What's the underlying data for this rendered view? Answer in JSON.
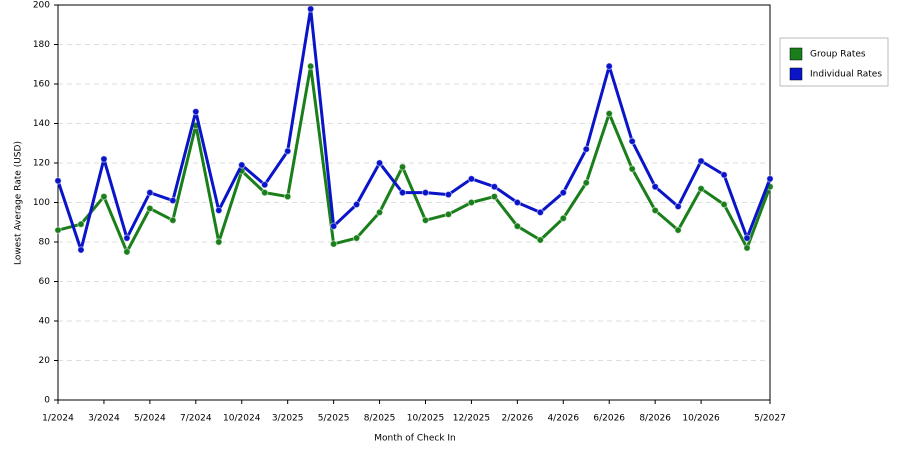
{
  "chart_data": {
    "type": "line",
    "x_label": "Month of Check In",
    "y_label": "Lowest Average Rate (USD)",
    "categories": [
      "1/2024",
      null,
      "3/2024",
      null,
      "5/2024",
      null,
      "7/2024",
      null,
      "10/2024",
      null,
      "3/2025",
      null,
      "5/2025",
      null,
      "8/2025",
      null,
      "10/2025",
      null,
      "12/2025",
      null,
      "2/2026",
      null,
      "4/2026",
      null,
      "6/2026",
      null,
      "8/2026",
      null,
      "10/2026",
      null,
      null,
      "5/2027"
    ],
    "series": [
      {
        "name": "Group Rates",
        "color": "#1a7f1a",
        "values": [
          86,
          89,
          103,
          75,
          97,
          91,
          139,
          80,
          116,
          105,
          103,
          169,
          79,
          82,
          95,
          118,
          91,
          94,
          100,
          103,
          88,
          81,
          92,
          110,
          145,
          117,
          96,
          86,
          107,
          99,
          77,
          108
        ]
      },
      {
        "name": "Individual Rates",
        "color": "#0a14c8",
        "values": [
          111,
          76,
          122,
          82,
          105,
          101,
          146,
          96,
          119,
          109,
          126,
          198,
          88,
          99,
          120,
          105,
          105,
          104,
          112,
          108,
          100,
          95,
          105,
          127,
          169,
          131,
          108,
          98,
          121,
          114,
          82,
          112
        ]
      }
    ],
    "ylim": [
      0,
      200
    ],
    "yticks": [
      0,
      20,
      40,
      60,
      80,
      100,
      120,
      140,
      160,
      180,
      200
    ],
    "grid": true,
    "legend": "right"
  }
}
